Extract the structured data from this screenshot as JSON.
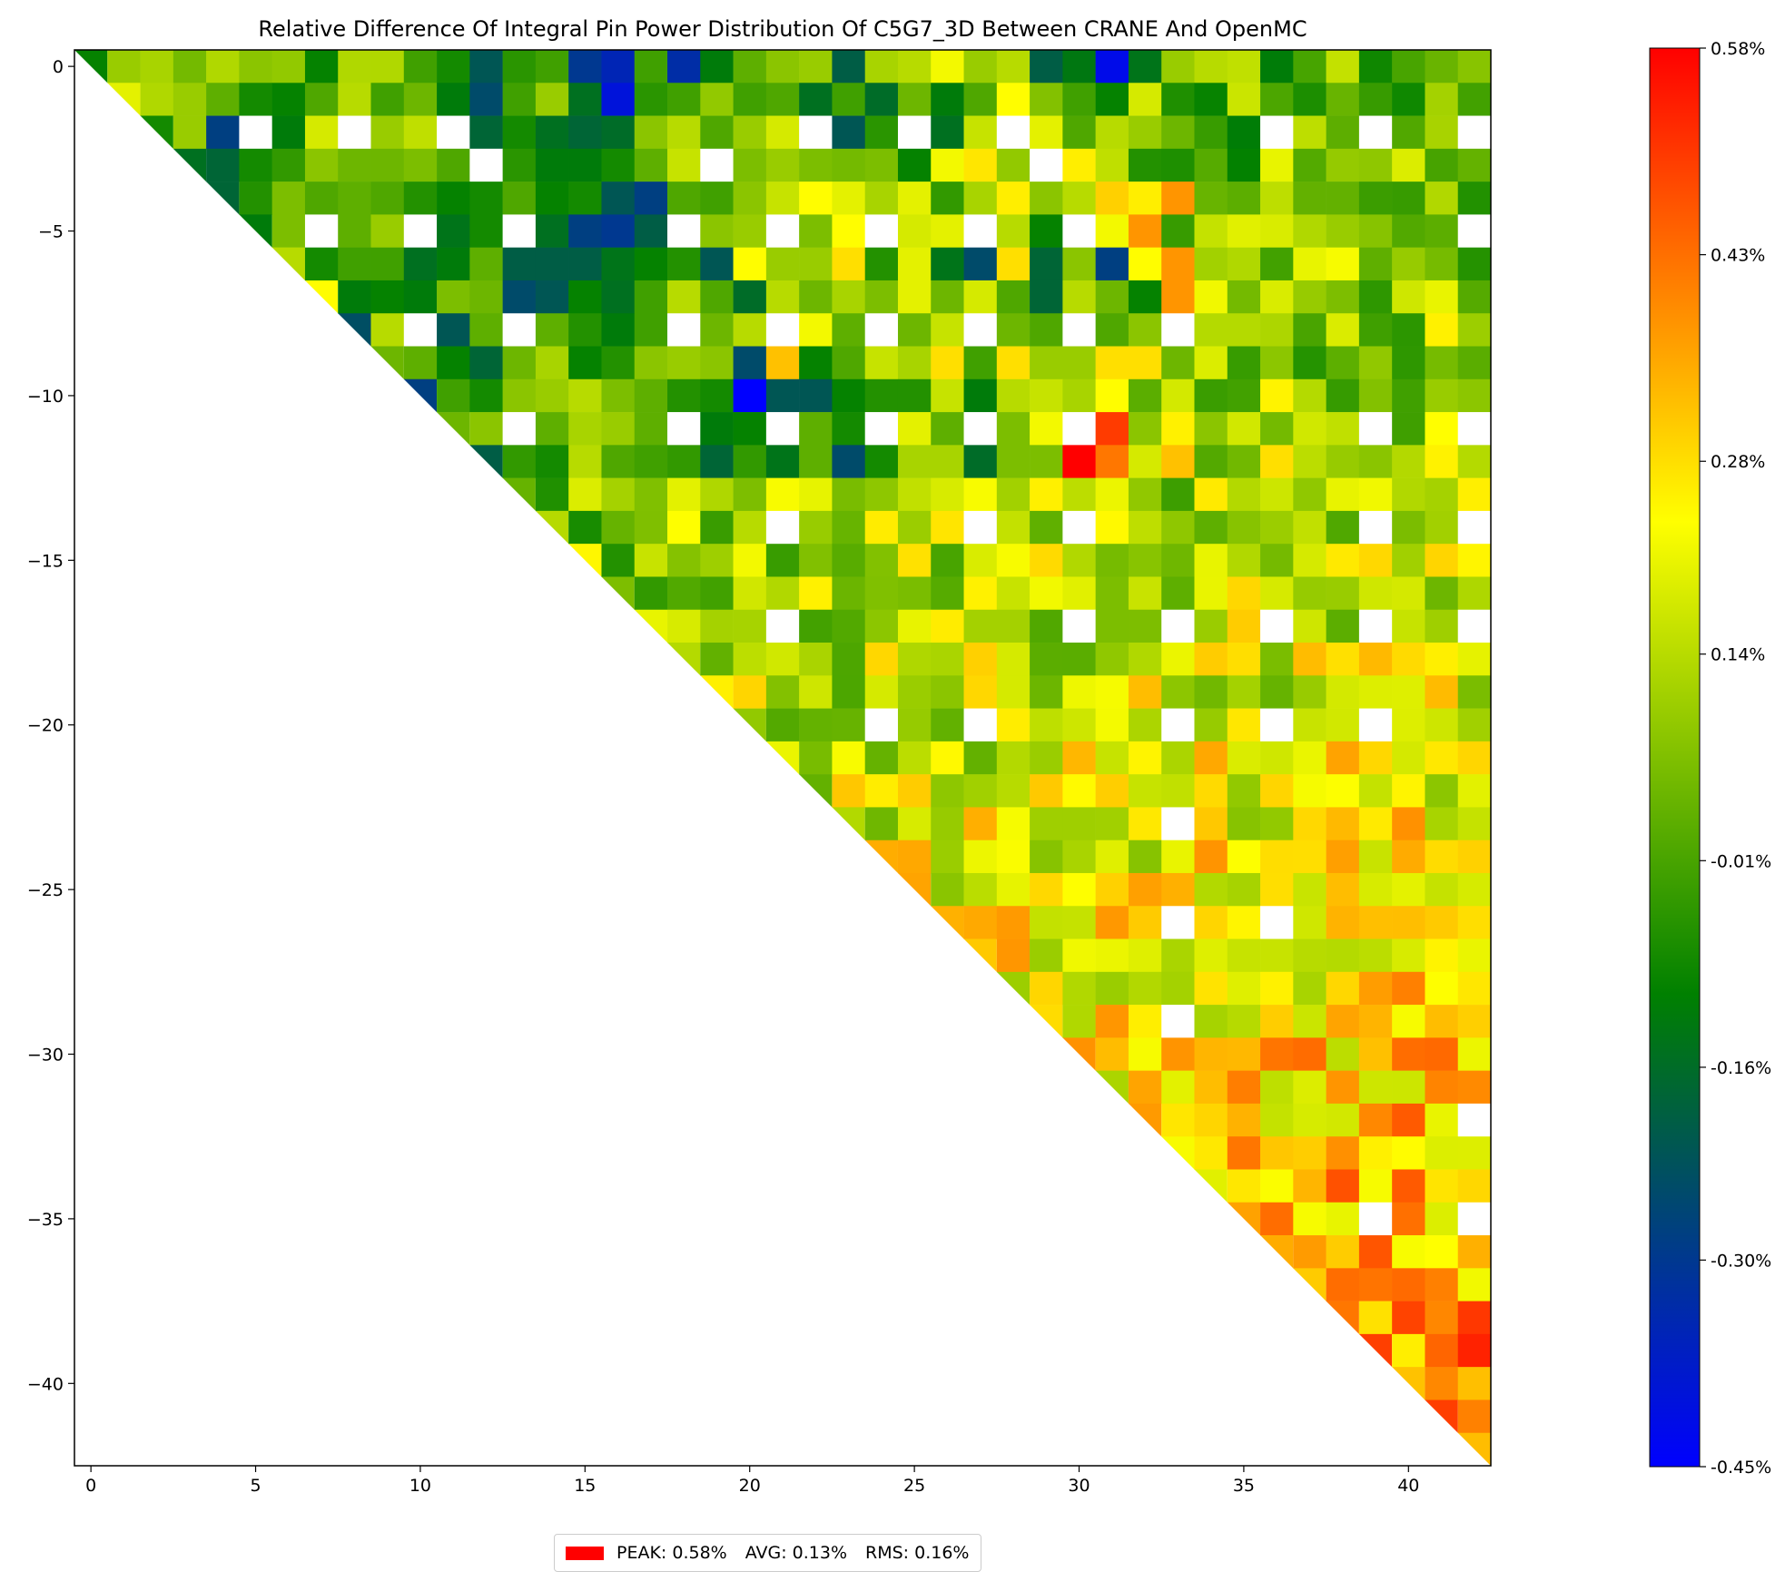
{
  "colors": {
    "min": "#0000ff",
    "mid": "#008000",
    "yellow": "#ffff00",
    "max": "#ff0000",
    "missing": "#ffffff",
    "peak_swatch": "#ff0000"
  },
  "legend": {
    "peak": "PEAK: 0.58%",
    "avg": "AVG: 0.13%",
    "rms": "RMS: 0.16%"
  },
  "chart_data": {
    "type": "heatmap",
    "title": "Relative Difference Of Integral Pin Power Distribution Of C5G7_3D Between CRANE And OpenMC",
    "xlabel": "",
    "ylabel": "",
    "n": 43,
    "xlim": [
      -0.5,
      42.5
    ],
    "ylim": [
      -42.5,
      0.5
    ],
    "x_ticks": [
      0,
      5,
      10,
      15,
      20,
      25,
      30,
      35,
      40
    ],
    "x_tick_labels": [
      "0",
      "5",
      "10",
      "15",
      "20",
      "25",
      "30",
      "35",
      "40"
    ],
    "y_ticks": [
      0,
      -5,
      -10,
      -15,
      -20,
      -25,
      -30,
      -35,
      -40
    ],
    "y_tick_labels": [
      "0",
      "−5",
      "−10",
      "−15",
      "−20",
      "−25",
      "−30",
      "−35",
      "−40"
    ],
    "colorbar": {
      "min": -0.45,
      "max": 0.58,
      "ticks": [
        0.58,
        0.43,
        0.28,
        0.14,
        -0.01,
        -0.16,
        -0.3,
        -0.45
      ],
      "tick_labels": [
        "0.58%",
        "0.43%",
        "0.28%",
        "0.14%",
        "-0.01%",
        "-0.16%",
        "-0.30%",
        "-0.45%"
      ]
    },
    "cell_shape": "upper-triangular (column >= row); diagonal cells are half triangles; white cells are empty guide-tube / instrument positions",
    "rows_first_13": [
      [
        -0.1,
        0.1,
        0.12,
        0.05,
        0.13,
        0.08,
        0.09,
        -0.1,
        0.13,
        0.13,
        -0.02,
        -0.08,
        -0.22,
        -0.05,
        -0.02,
        -0.3,
        -0.35,
        -0.02,
        -0.33,
        -0.12,
        0.02,
        0.08,
        0.1,
        -0.2,
        0.12,
        0.14,
        0.22,
        0.1,
        0.14,
        -0.2,
        -0.13,
        -0.42,
        -0.14,
        0.1
      ],
      [
        0.2,
        0.13,
        0.1,
        0.02,
        -0.08,
        -0.1,
        0.0,
        0.14,
        -0.02,
        0.04,
        -0.12,
        -0.25,
        -0.02,
        0.1,
        -0.15,
        -0.4,
        -0.05,
        -0.02,
        0.09,
        -0.02,
        0.0,
        -0.15,
        -0.02,
        -0.16,
        0.04,
        -0.12,
        0.0,
        0.24,
        0.07,
        -0.02,
        -0.1,
        0.18
      ],
      [
        -0.08,
        0.1,
        -0.28,
        null,
        -0.12,
        0.18,
        null,
        0.1,
        0.15,
        null,
        -0.18,
        -0.08,
        -0.15,
        -0.18,
        -0.16,
        0.08,
        0.14,
        0.0,
        0.1,
        0.18,
        null,
        -0.22,
        -0.05,
        null,
        -0.15,
        0.16,
        null,
        0.2,
        0.0,
        0.14,
        0.1,
        0.04
      ],
      [
        -0.15,
        -0.18,
        -0.08,
        -0.04,
        0.08,
        0.04,
        0.04,
        0.06,
        0.0,
        null,
        -0.05,
        -0.12,
        -0.12,
        -0.08,
        0.02,
        0.16,
        null,
        0.06,
        0.1,
        0.06,
        0.05,
        0.06,
        -0.1,
        0.22,
        0.27,
        0.09,
        null,
        0.26,
        0.15,
        -0.06
      ],
      [
        -0.18,
        -0.06,
        0.06,
        0.0,
        0.02,
        0.0,
        -0.06,
        -0.1,
        -0.08,
        0.0,
        -0.1,
        -0.08,
        -0.22,
        -0.28,
        0.0,
        -0.02,
        0.08,
        0.16,
        0.24,
        0.2,
        0.12,
        0.2,
        -0.04,
        0.12,
        0.26,
        0.08,
        0.14,
        0.3,
        0.26,
        0.38
      ],
      [
        -0.12,
        0.06,
        null,
        0.02,
        0.1,
        null,
        -0.14,
        -0.08,
        null,
        -0.15,
        -0.28,
        -0.3,
        -0.2,
        null,
        0.08,
        0.1,
        null,
        0.06,
        0.24,
        null,
        0.18,
        0.2,
        null,
        0.14,
        -0.1,
        null,
        0.22,
        0.38
      ],
      [
        0.14,
        -0.08,
        -0.02,
        -0.02,
        -0.15,
        -0.12,
        0.02,
        -0.2,
        -0.2,
        -0.2,
        -0.14,
        -0.1,
        -0.06,
        -0.22,
        0.24,
        0.1,
        0.1,
        0.28,
        -0.06,
        0.2,
        -0.14,
        -0.25,
        0.28,
        -0.18,
        0.08,
        -0.28,
        0.24,
        0.38
      ],
      [
        0.24,
        -0.12,
        -0.1,
        -0.12,
        0.06,
        0.04,
        -0.25,
        -0.22,
        -0.1,
        -0.15,
        -0.02,
        0.14,
        0.0,
        -0.16,
        0.14,
        0.04,
        0.12,
        0.06,
        0.2,
        0.04,
        0.18,
        0.0,
        -0.18,
        0.14,
        0.04,
        -0.1,
        0.38
      ],
      [
        -0.24,
        0.14,
        null,
        -0.22,
        0.02,
        null,
        0.02,
        -0.06,
        -0.12,
        -0.02,
        null,
        0.04,
        0.14,
        null,
        0.22,
        0.02,
        null,
        0.04,
        0.16,
        null,
        0.04,
        0.0,
        null,
        0.0,
        0.08
      ],
      [
        0.04,
        0.02,
        -0.1,
        -0.18,
        0.04,
        0.12,
        -0.1,
        -0.06,
        0.08,
        0.1,
        0.08,
        -0.25,
        0.32,
        -0.1,
        0.0,
        0.16,
        0.12,
        0.28,
        -0.02,
        0.28,
        0.1,
        0.1,
        0.28,
        0.28,
        0.04
      ],
      [
        -0.28,
        -0.02,
        -0.08,
        0.08,
        0.1,
        0.14,
        0.06,
        0.02,
        -0.06,
        -0.08,
        -0.45,
        -0.22,
        -0.22,
        -0.1,
        -0.06,
        -0.06,
        0.16,
        -0.12,
        0.14,
        0.16,
        0.12,
        0.24
      ],
      [
        0.04,
        0.08,
        null,
        0.02,
        0.12,
        0.1,
        0.02,
        null,
        -0.12,
        -0.1,
        null,
        0.02,
        -0.08,
        null,
        0.2,
        0.02,
        null,
        0.06,
        0.22,
        null,
        0.5,
        0.08
      ],
      [
        -0.2,
        -0.04,
        -0.08,
        0.14,
        0.0,
        -0.02,
        -0.04,
        -0.18,
        -0.04,
        -0.14,
        0.02,
        -0.25,
        -0.08,
        0.12,
        0.12,
        -0.16,
        0.06,
        0.06,
        0.58,
        0.42,
        0.18,
        0.32
      ]
    ],
    "summary": {
      "peak": 0.58,
      "avg": 0.13,
      "rms": 0.16
    }
  }
}
